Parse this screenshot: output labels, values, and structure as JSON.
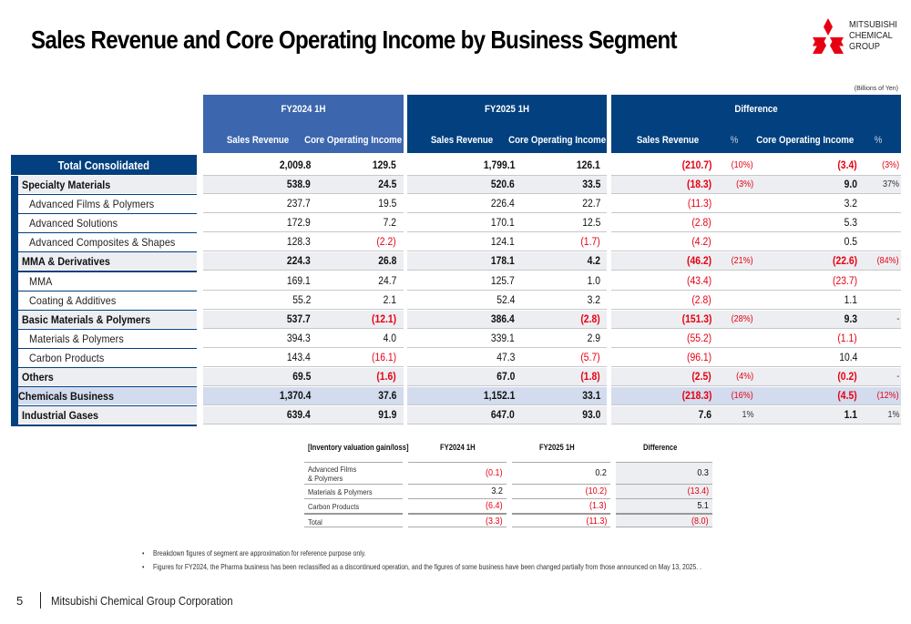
{
  "title": "Sales Revenue and Core Operating Income by Business Segment",
  "logo": {
    "icon": "three-diamonds-icon",
    "lines": [
      "MITSUBISHI",
      "CHEMICAL",
      "GROUP"
    ],
    "color": "#e60012"
  },
  "unit_note": "(Billions of Yen)",
  "colors": {
    "header_fy2024": "#3c66ad",
    "header_dark": "#02407f",
    "negative": "#e60012",
    "row_shade": "#eceef1",
    "chem_row": "#d3dbee"
  },
  "headers": {
    "fy2024": {
      "title": "FY2024 1H",
      "sales": "Sales Revenue",
      "core": "Core Operating Income"
    },
    "fy2025": {
      "title": "FY2025 1H",
      "sales": "Sales Revenue",
      "core": "Core Operating Income"
    },
    "diff": {
      "title": "Difference",
      "sales": "Sales Revenue",
      "sales_pct": "%",
      "core": "Core Operating Income",
      "core_pct": "%"
    }
  },
  "rows": [
    {
      "label": "Total Consolidated",
      "type": "total",
      "fy24_sales": "2,009.8",
      "fy24_core": "129.5",
      "fy25_sales": "1,799.1",
      "fy25_core": "126.1",
      "diff_sales": "(210.7)",
      "diff_sales_pct": "(10%)",
      "diff_core": "(3.4)",
      "diff_core_pct": "(3%)"
    },
    {
      "label": "Specialty Materials",
      "type": "seg",
      "fy24_sales": "538.9",
      "fy24_core": "24.5",
      "fy25_sales": "520.6",
      "fy25_core": "33.5",
      "diff_sales": "(18.3)",
      "diff_sales_pct": "(3%)",
      "diff_core": "9.0",
      "diff_core_pct": "37%"
    },
    {
      "label": "Advanced Films & Polymers",
      "type": "sub",
      "fy24_sales": "237.7",
      "fy24_core": "19.5",
      "fy25_sales": "226.4",
      "fy25_core": "22.7",
      "diff_sales": "(11.3)",
      "diff_sales_pct": "",
      "diff_core": "3.2",
      "diff_core_pct": ""
    },
    {
      "label": "Advanced Solutions",
      "type": "sub",
      "fy24_sales": "172.9",
      "fy24_core": "7.2",
      "fy25_sales": "170.1",
      "fy25_core": "12.5",
      "diff_sales": "(2.8)",
      "diff_sales_pct": "",
      "diff_core": "5.3",
      "diff_core_pct": ""
    },
    {
      "label": "Advanced Composites & Shapes",
      "type": "sub",
      "fy24_sales": "128.3",
      "fy24_core": "(2.2)",
      "fy25_sales": "124.1",
      "fy25_core": "(1.7)",
      "diff_sales": "(4.2)",
      "diff_sales_pct": "",
      "diff_core": "0.5",
      "diff_core_pct": ""
    },
    {
      "label": "MMA & Derivatives",
      "type": "seg",
      "fy24_sales": "224.3",
      "fy24_core": "26.8",
      "fy25_sales": "178.1",
      "fy25_core": "4.2",
      "diff_sales": "(46.2)",
      "diff_sales_pct": "(21%)",
      "diff_core": "(22.6)",
      "diff_core_pct": "(84%)"
    },
    {
      "label": "MMA",
      "type": "sub",
      "fy24_sales": "169.1",
      "fy24_core": "24.7",
      "fy25_sales": "125.7",
      "fy25_core": "1.0",
      "diff_sales": "(43.4)",
      "diff_sales_pct": "",
      "diff_core": "(23.7)",
      "diff_core_pct": ""
    },
    {
      "label": "Coating & Additives",
      "type": "sub",
      "fy24_sales": "55.2",
      "fy24_core": "2.1",
      "fy25_sales": "52.4",
      "fy25_core": "3.2",
      "diff_sales": "(2.8)",
      "diff_sales_pct": "",
      "diff_core": "1.1",
      "diff_core_pct": ""
    },
    {
      "label": "Basic Materials & Polymers",
      "type": "seg",
      "fy24_sales": "537.7",
      "fy24_core": "(12.1)",
      "fy25_sales": "386.4",
      "fy25_core": "(2.8)",
      "diff_sales": "(151.3)",
      "diff_sales_pct": "(28%)",
      "diff_core": "9.3",
      "diff_core_pct": "-"
    },
    {
      "label": "Materials & Polymers",
      "type": "sub",
      "fy24_sales": "394.3",
      "fy24_core": "4.0",
      "fy25_sales": "339.1",
      "fy25_core": "2.9",
      "diff_sales": "(55.2)",
      "diff_sales_pct": "",
      "diff_core": "(1.1)",
      "diff_core_pct": ""
    },
    {
      "label": "Carbon Products",
      "type": "sub",
      "fy24_sales": "143.4",
      "fy24_core": "(16.1)",
      "fy25_sales": "47.3",
      "fy25_core": "(5.7)",
      "diff_sales": "(96.1)",
      "diff_sales_pct": "",
      "diff_core": "10.4",
      "diff_core_pct": ""
    },
    {
      "label": "Others",
      "type": "seg",
      "fy24_sales": "69.5",
      "fy24_core": "(1.6)",
      "fy25_sales": "67.0",
      "fy25_core": "(1.8)",
      "diff_sales": "(2.5)",
      "diff_sales_pct": "(4%)",
      "diff_core": "(0.2)",
      "diff_core_pct": "-"
    },
    {
      "label": "Chemicals Business",
      "type": "chem",
      "fy24_sales": "1,370.4",
      "fy24_core": "37.6",
      "fy25_sales": "1,152.1",
      "fy25_core": "33.1",
      "diff_sales": "(218.3)",
      "diff_sales_pct": "(16%)",
      "diff_core": "(4.5)",
      "diff_core_pct": "(12%)"
    },
    {
      "label": "Industrial Gases",
      "type": "seg",
      "fy24_sales": "639.4",
      "fy24_core": "91.9",
      "fy25_sales": "647.0",
      "fy25_core": "93.0",
      "diff_sales": "7.6",
      "diff_sales_pct": "1%",
      "diff_core": "1.1",
      "diff_core_pct": "1%"
    }
  ],
  "inventory": {
    "title": "[Inventory valuation gain/loss]",
    "col_fy2024": "FY2024 1H",
    "col_fy2025": "FY2025 1H",
    "col_diff": "Difference",
    "rows": [
      {
        "label_line1": "Advanced Films",
        "label_line2": "& Polymers",
        "fy24": "(0.1)",
        "fy25": "0.2",
        "diff": "0.3"
      },
      {
        "label_line1": "Materials & Polymers",
        "label_line2": "",
        "fy24": "3.2",
        "fy25": "(10.2)",
        "diff": "(13.4)"
      },
      {
        "label_line1": "Carbon Products",
        "label_line2": "",
        "fy24": "(6.4)",
        "fy25": "(1.3)",
        "diff": "5.1"
      },
      {
        "label_line1": "Total",
        "label_line2": "",
        "fy24": "(3.3)",
        "fy25": "(11.3)",
        "diff": "(8.0)"
      }
    ]
  },
  "notes": [
    "Breakdown figures of segment are approximation for reference purpose only.",
    "Figures for FY2024, the Pharma business has been reclassified as a discontinued operation, and the figures of some business have been changed partially from those announced on May 13, 2025. ."
  ],
  "footer": {
    "page_number": "5",
    "company": "Mitsubishi Chemical Group Corporation"
  }
}
